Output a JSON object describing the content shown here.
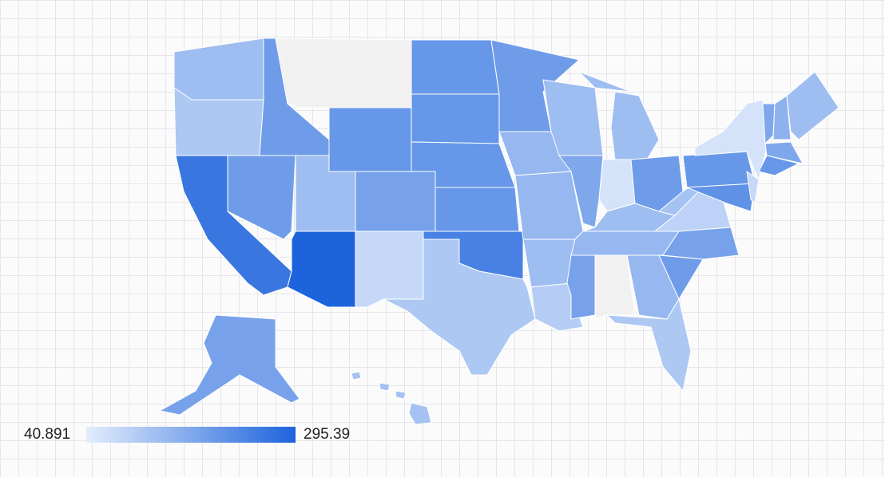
{
  "legend": {
    "min": 40.891,
    "max": 295.39
  },
  "regions": {
    "values": [
      130,
      110,
      260,
      190,
      190,
      null,
      200,
      130,
      180,
      295,
      80,
      200,
      200,
      200,
      200,
      240,
      110,
      190,
      140,
      140,
      130,
      100,
      130,
      170,
      130,
      60,
      190,
      130,
      140,
      180,
      null,
      140,
      110,
      190,
      180,
      90,
      120,
      200,
      60,
      210,
      80,
      170,
      150,
      130,
      170,
      200,
      180,
      120
    ]
  }
}
